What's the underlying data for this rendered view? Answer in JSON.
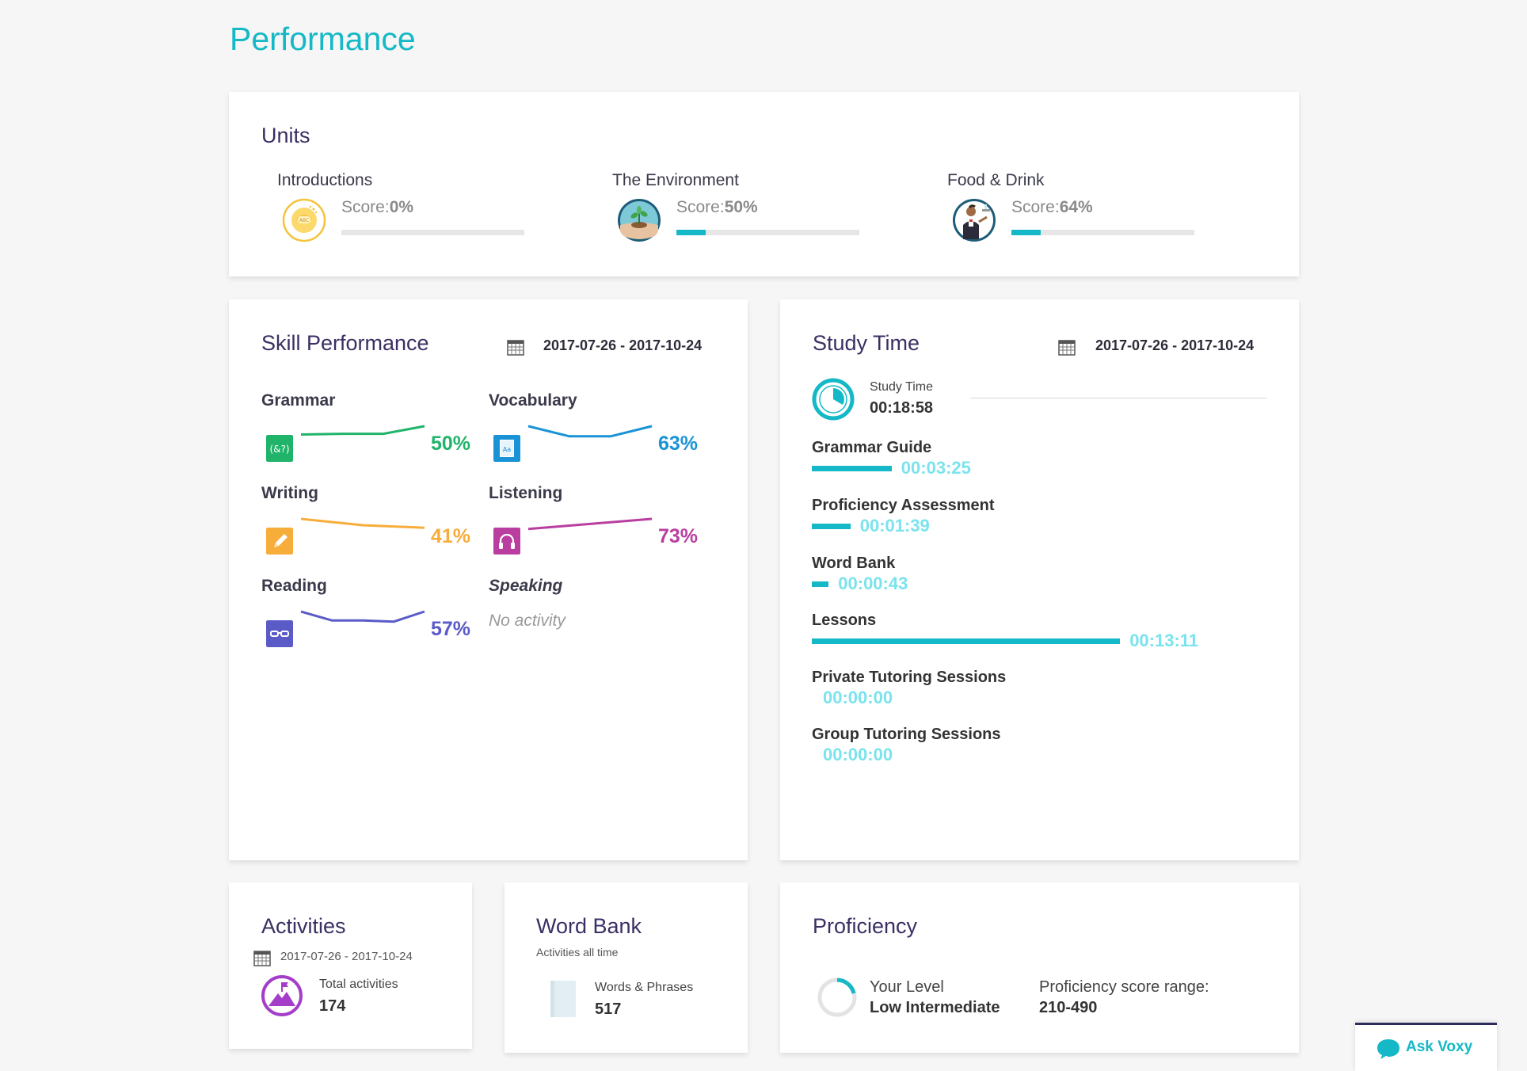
{
  "page": {
    "title": "Performance"
  },
  "units": {
    "title": "Units",
    "items": [
      {
        "name": "Introductions",
        "score_label": "Score:",
        "score_value": "0%",
        "progress": 0,
        "icon": "abc-speech-bubble-icon"
      },
      {
        "name": "The Environment",
        "score_label": "Score:",
        "score_value": "50%",
        "progress": 0.16,
        "icon": "plant-in-hands-icon"
      },
      {
        "name": "Food & Drink",
        "score_label": "Score:",
        "score_value": "64%",
        "progress": 0.16,
        "icon": "waiter-icon"
      }
    ]
  },
  "skill_performance": {
    "title": "Skill Performance",
    "date_range": "2017-07-26 - 2017-10-24",
    "skills": [
      {
        "name": "Grammar",
        "percent": "50%",
        "color": "#20b46a",
        "icon": "grammar-icon",
        "trend": [
          0.33,
          0.3,
          0.3,
          0.0
        ]
      },
      {
        "name": "Vocabulary",
        "percent": "63%",
        "color": "#1a93d6",
        "icon": "vocabulary-book-icon",
        "trend": [
          0.0,
          0.4,
          0.4,
          0.0
        ]
      },
      {
        "name": "Writing",
        "percent": "41%",
        "color": "#f7ad3a",
        "icon": "pencil-icon",
        "trend": [
          0.0,
          0.25,
          0.35
        ]
      },
      {
        "name": "Listening",
        "percent": "73%",
        "color": "#b93ea0",
        "icon": "headphones-icon",
        "trend": [
          0.4,
          0.2,
          0.0
        ]
      },
      {
        "name": "Reading",
        "percent": "57%",
        "color": "#5b5bc8",
        "icon": "glasses-icon",
        "trend": [
          0.0,
          0.35,
          0.35,
          0.4,
          0.0
        ]
      }
    ],
    "speaking": {
      "name": "Speaking",
      "status": "No activity"
    }
  },
  "study_time": {
    "title": "Study Time",
    "date_range": "2017-07-26 - 2017-10-24",
    "summary_label": "Study Time",
    "summary_value": "00:18:58",
    "items": [
      {
        "label": "Grammar Guide",
        "time": "00:03:25",
        "fraction": 0.18
      },
      {
        "label": "Proficiency Assessment",
        "time": "00:01:39",
        "fraction": 0.087
      },
      {
        "label": "Word Bank",
        "time": "00:00:43",
        "fraction": 0.038
      },
      {
        "label": "Lessons",
        "time": "00:13:11",
        "fraction": 0.695
      },
      {
        "label": "Private Tutoring Sessions",
        "time": "00:00:00",
        "fraction": 0
      },
      {
        "label": "Group Tutoring Sessions",
        "time": "00:00:00",
        "fraction": 0
      }
    ]
  },
  "activities": {
    "title": "Activities",
    "date_range": "2017-07-26 - 2017-10-24",
    "total_label": "Total activities",
    "total_value": "174"
  },
  "word_bank": {
    "title": "Word Bank",
    "subtitle": "Activities all time",
    "words_label": "Words & Phrases",
    "words_value": "517"
  },
  "proficiency": {
    "title": "Proficiency",
    "level_label": "Your Level",
    "level_value": "Low Intermediate",
    "range_label": "Proficiency score range:",
    "range_value": "210-490"
  },
  "ask_voxy": {
    "label": "Ask Voxy"
  },
  "colors": {
    "accent": "#14b8c6",
    "heading": "#3b2f63",
    "activities_purple": "#a43ec9"
  }
}
